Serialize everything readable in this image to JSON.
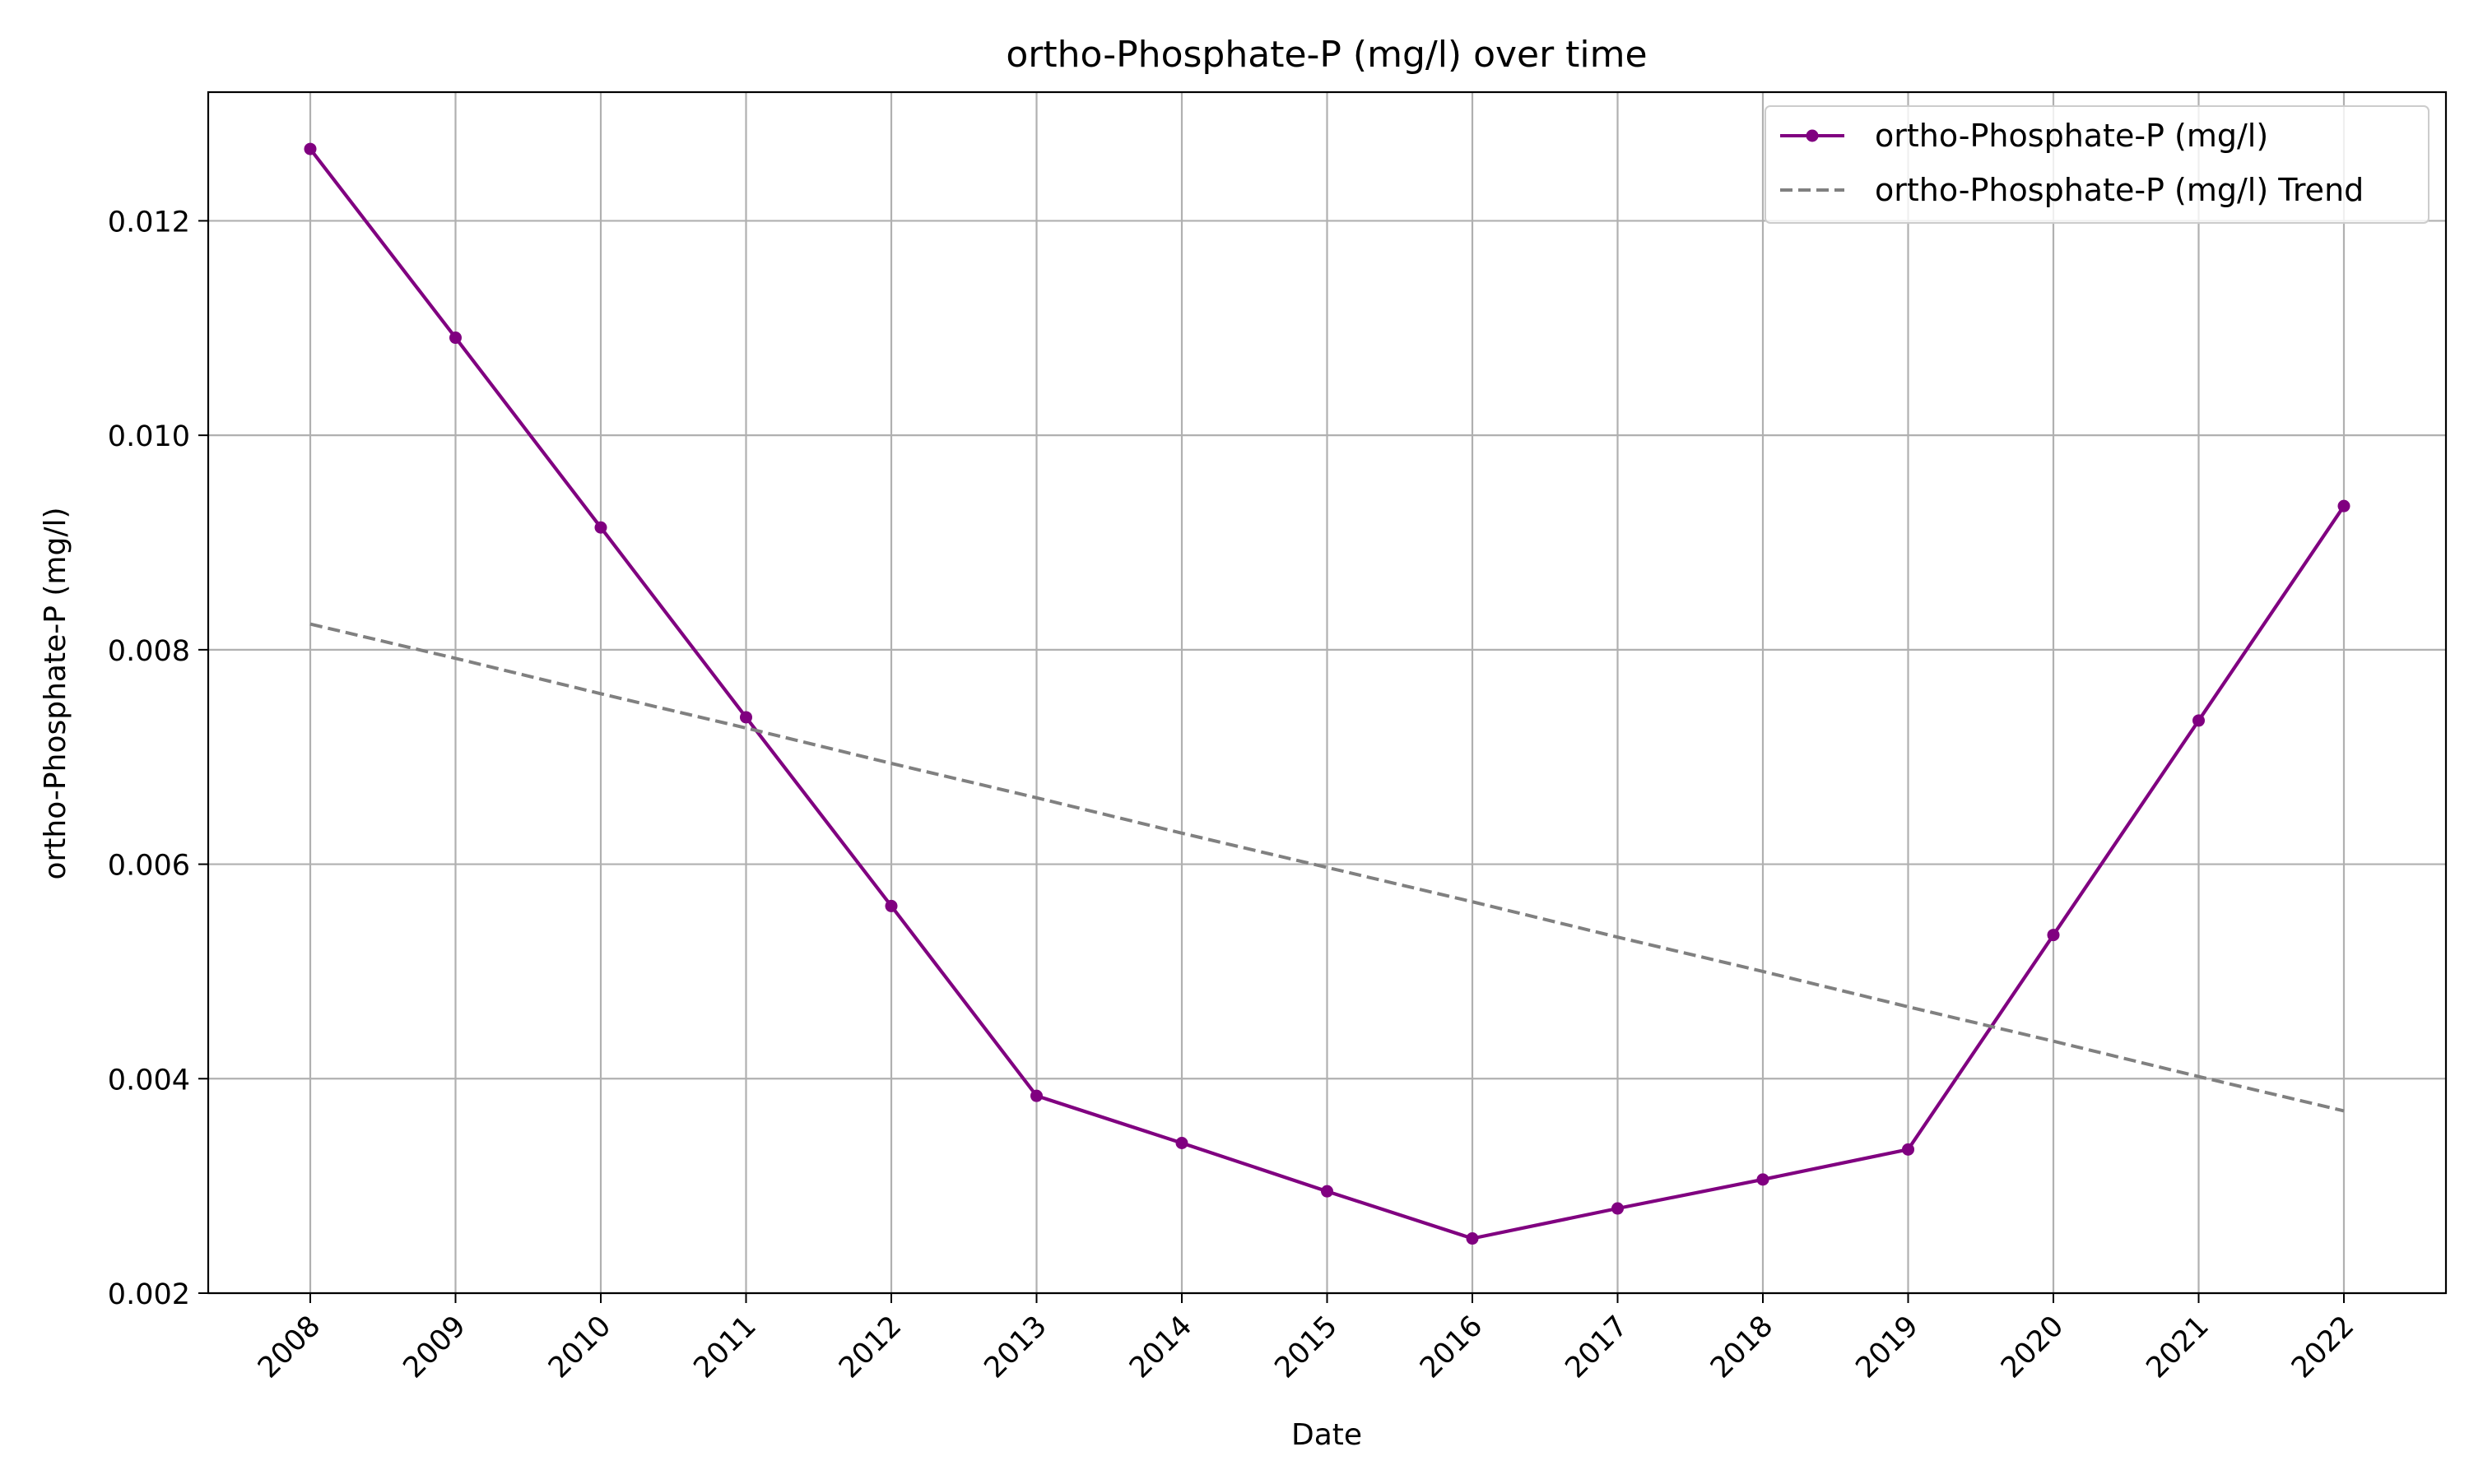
{
  "chart_data": {
    "type": "line",
    "title": "ortho-Phosphate-P (mg/l) over time",
    "xlabel": "Date",
    "ylabel": "ortho-Phosphate-P (mg/l)",
    "x": [
      "2008",
      "2009",
      "2010",
      "2011",
      "2012",
      "2013",
      "2014",
      "2015",
      "2016",
      "2017",
      "2018",
      "2019",
      "2020",
      "2021",
      "2022"
    ],
    "ylim": [
      0.002,
      0.0132
    ],
    "yticks": [
      "0.002",
      "0.004",
      "0.006",
      "0.008",
      "0.010",
      "0.012"
    ],
    "grid": true,
    "legend_position": "top-right",
    "series": [
      {
        "name": "ortho-Phosphate-P (mg/l)",
        "style": "solid-with-markers",
        "color": "#800080",
        "values": [
          0.01267,
          0.01091,
          0.00914,
          0.00737,
          0.00561,
          0.00384,
          0.0034,
          0.00295,
          0.00251,
          0.00279,
          0.00306,
          0.00334,
          0.00534,
          0.00734,
          0.00934
        ]
      },
      {
        "name": "ortho-Phosphate-P (mg/l) Trend",
        "style": "dashed",
        "color": "#808080",
        "values": [
          0.00824,
          0.00792,
          0.00759,
          0.00727,
          0.00694,
          0.00662,
          0.00629,
          0.00597,
          0.00565,
          0.00532,
          0.005,
          0.00467,
          0.00435,
          0.00402,
          0.0037
        ]
      }
    ]
  }
}
